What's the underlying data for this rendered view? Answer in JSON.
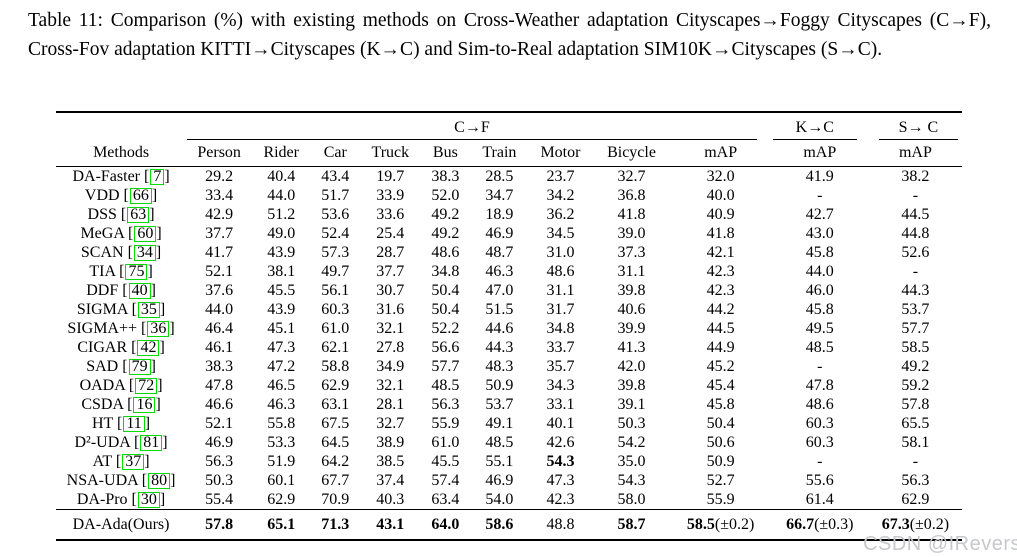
{
  "caption": "Table 11: Comparison (%) with existing methods on Cross-Weather adaptation Cityscapes→Foggy Cityscapes (C→F), Cross-Fov adaptation KITTI→Cityscapes (K→C) and Sim-to-Real adaptation SIM10K→Cityscapes (S→C).",
  "watermark": {
    "text": "CSDN @IRevers"
  },
  "colors": {
    "citation_box": "#00dc00",
    "watermark": "#c7c8cc",
    "text": "#000000",
    "background": "#ffffff"
  },
  "table": {
    "group_headers": [
      {
        "label": "C→F",
        "span": 9
      },
      {
        "label": "K→C",
        "span": 1
      },
      {
        "label": "S→ C",
        "span": 1
      }
    ],
    "columns": [
      "Methods",
      "Person",
      "Rider",
      "Car",
      "Truck",
      "Bus",
      "Train",
      "Motor",
      "Bicycle",
      "mAP",
      "mAP",
      "mAP"
    ],
    "rows": [
      {
        "name": "DA-Faster",
        "ref": "7",
        "values": [
          "29.2",
          "40.4",
          "43.4",
          "19.7",
          "38.3",
          "28.5",
          "23.7",
          "32.7",
          "32.0",
          "41.9",
          "38.2"
        ]
      },
      {
        "name": "VDD",
        "ref": "66",
        "values": [
          "33.4",
          "44.0",
          "51.7",
          "33.9",
          "52.0",
          "34.7",
          "34.2",
          "36.8",
          "40.0",
          "-",
          "-"
        ]
      },
      {
        "name": "DSS",
        "ref": "63",
        "values": [
          "42.9",
          "51.2",
          "53.6",
          "33.6",
          "49.2",
          "18.9",
          "36.2",
          "41.8",
          "40.9",
          "42.7",
          "44.5"
        ]
      },
      {
        "name": "MeGA",
        "ref": "60",
        "values": [
          "37.7",
          "49.0",
          "52.4",
          "25.4",
          "49.2",
          "46.9",
          "34.5",
          "39.0",
          "41.8",
          "43.0",
          "44.8"
        ]
      },
      {
        "name": "SCAN",
        "ref": "34",
        "values": [
          "41.7",
          "43.9",
          "57.3",
          "28.7",
          "48.6",
          "48.7",
          "31.0",
          "37.3",
          "42.1",
          "45.8",
          "52.6"
        ]
      },
      {
        "name": "TIA",
        "ref": "75",
        "values": [
          "52.1",
          "38.1",
          "49.7",
          "37.7",
          "34.8",
          "46.3",
          "48.6",
          "31.1",
          "42.3",
          "44.0",
          "-"
        ]
      },
      {
        "name": "DDF",
        "ref": "40",
        "values": [
          "37.6",
          "45.5",
          "56.1",
          "30.7",
          "50.4",
          "47.0",
          "31.1",
          "39.8",
          "42.3",
          "46.0",
          "44.3"
        ]
      },
      {
        "name": "SIGMA",
        "ref": "35",
        "values": [
          "44.0",
          "43.9",
          "60.3",
          "31.6",
          "50.4",
          "51.5",
          "31.7",
          "40.6",
          "44.2",
          "45.8",
          "53.7"
        ]
      },
      {
        "name": "SIGMA++",
        "ref": "36",
        "values": [
          "46.4",
          "45.1",
          "61.0",
          "32.1",
          "52.2",
          "44.6",
          "34.8",
          "39.9",
          "44.5",
          "49.5",
          "57.7"
        ]
      },
      {
        "name": "CIGAR",
        "ref": "42",
        "values": [
          "46.1",
          "47.3",
          "62.1",
          "27.8",
          "56.6",
          "44.3",
          "33.7",
          "41.3",
          "44.9",
          "48.5",
          "58.5"
        ]
      },
      {
        "name": "SAD",
        "ref": "79",
        "values": [
          "38.3",
          "47.2",
          "58.8",
          "34.9",
          "57.7",
          "48.3",
          "35.7",
          "42.0",
          "45.2",
          "-",
          "49.2"
        ]
      },
      {
        "name": "OADA",
        "ref": "72",
        "values": [
          "47.8",
          "46.5",
          "62.9",
          "32.1",
          "48.5",
          "50.9",
          "34.3",
          "39.8",
          "45.4",
          "47.8",
          "59.2"
        ]
      },
      {
        "name": "CSDA",
        "ref": "16",
        "values": [
          "46.6",
          "46.3",
          "63.1",
          "28.1",
          "56.3",
          "53.7",
          "33.1",
          "39.1",
          "45.8",
          "48.6",
          "57.8"
        ]
      },
      {
        "name": "HT",
        "ref": "11",
        "values": [
          "52.1",
          "55.8",
          "67.5",
          "32.7",
          "55.9",
          "49.1",
          "40.1",
          "50.3",
          "50.4",
          "60.3",
          "65.5"
        ]
      },
      {
        "name": "D²-UDA",
        "ref": "81",
        "values": [
          "46.9",
          "53.3",
          "64.5",
          "38.9",
          "61.0",
          "48.5",
          "42.6",
          "54.2",
          "50.6",
          "60.3",
          "58.1"
        ]
      },
      {
        "name": "AT",
        "ref": "37",
        "values": [
          "56.3",
          "51.9",
          "64.2",
          "38.5",
          "45.5",
          "55.1",
          "**54.3**",
          "35.0",
          "50.9",
          "-",
          "-"
        ]
      },
      {
        "name": "NSA-UDA",
        "ref": "80",
        "values": [
          "50.3",
          "60.1",
          "67.7",
          "37.4",
          "57.4",
          "46.9",
          "47.3",
          "54.3",
          "52.7",
          "55.6",
          "56.3"
        ]
      },
      {
        "name": "DA-Pro",
        "ref": "30",
        "values": [
          "55.4",
          "62.9",
          "70.9",
          "40.3",
          "63.4",
          "54.0",
          "42.3",
          "58.0",
          "55.9",
          "61.4",
          "62.9"
        ]
      },
      {
        "name": "DA-Ada(Ours)",
        "ref": null,
        "ours": true,
        "values": [
          "**57.8**",
          "**65.1**",
          "**71.3**",
          "**43.1**",
          "**64.0**",
          "**58.6**",
          "48.8",
          "**58.7**",
          "**58.5**(±0.2)",
          "**66.7**(±0.3)",
          "**67.3**(±0.2)"
        ]
      }
    ]
  }
}
